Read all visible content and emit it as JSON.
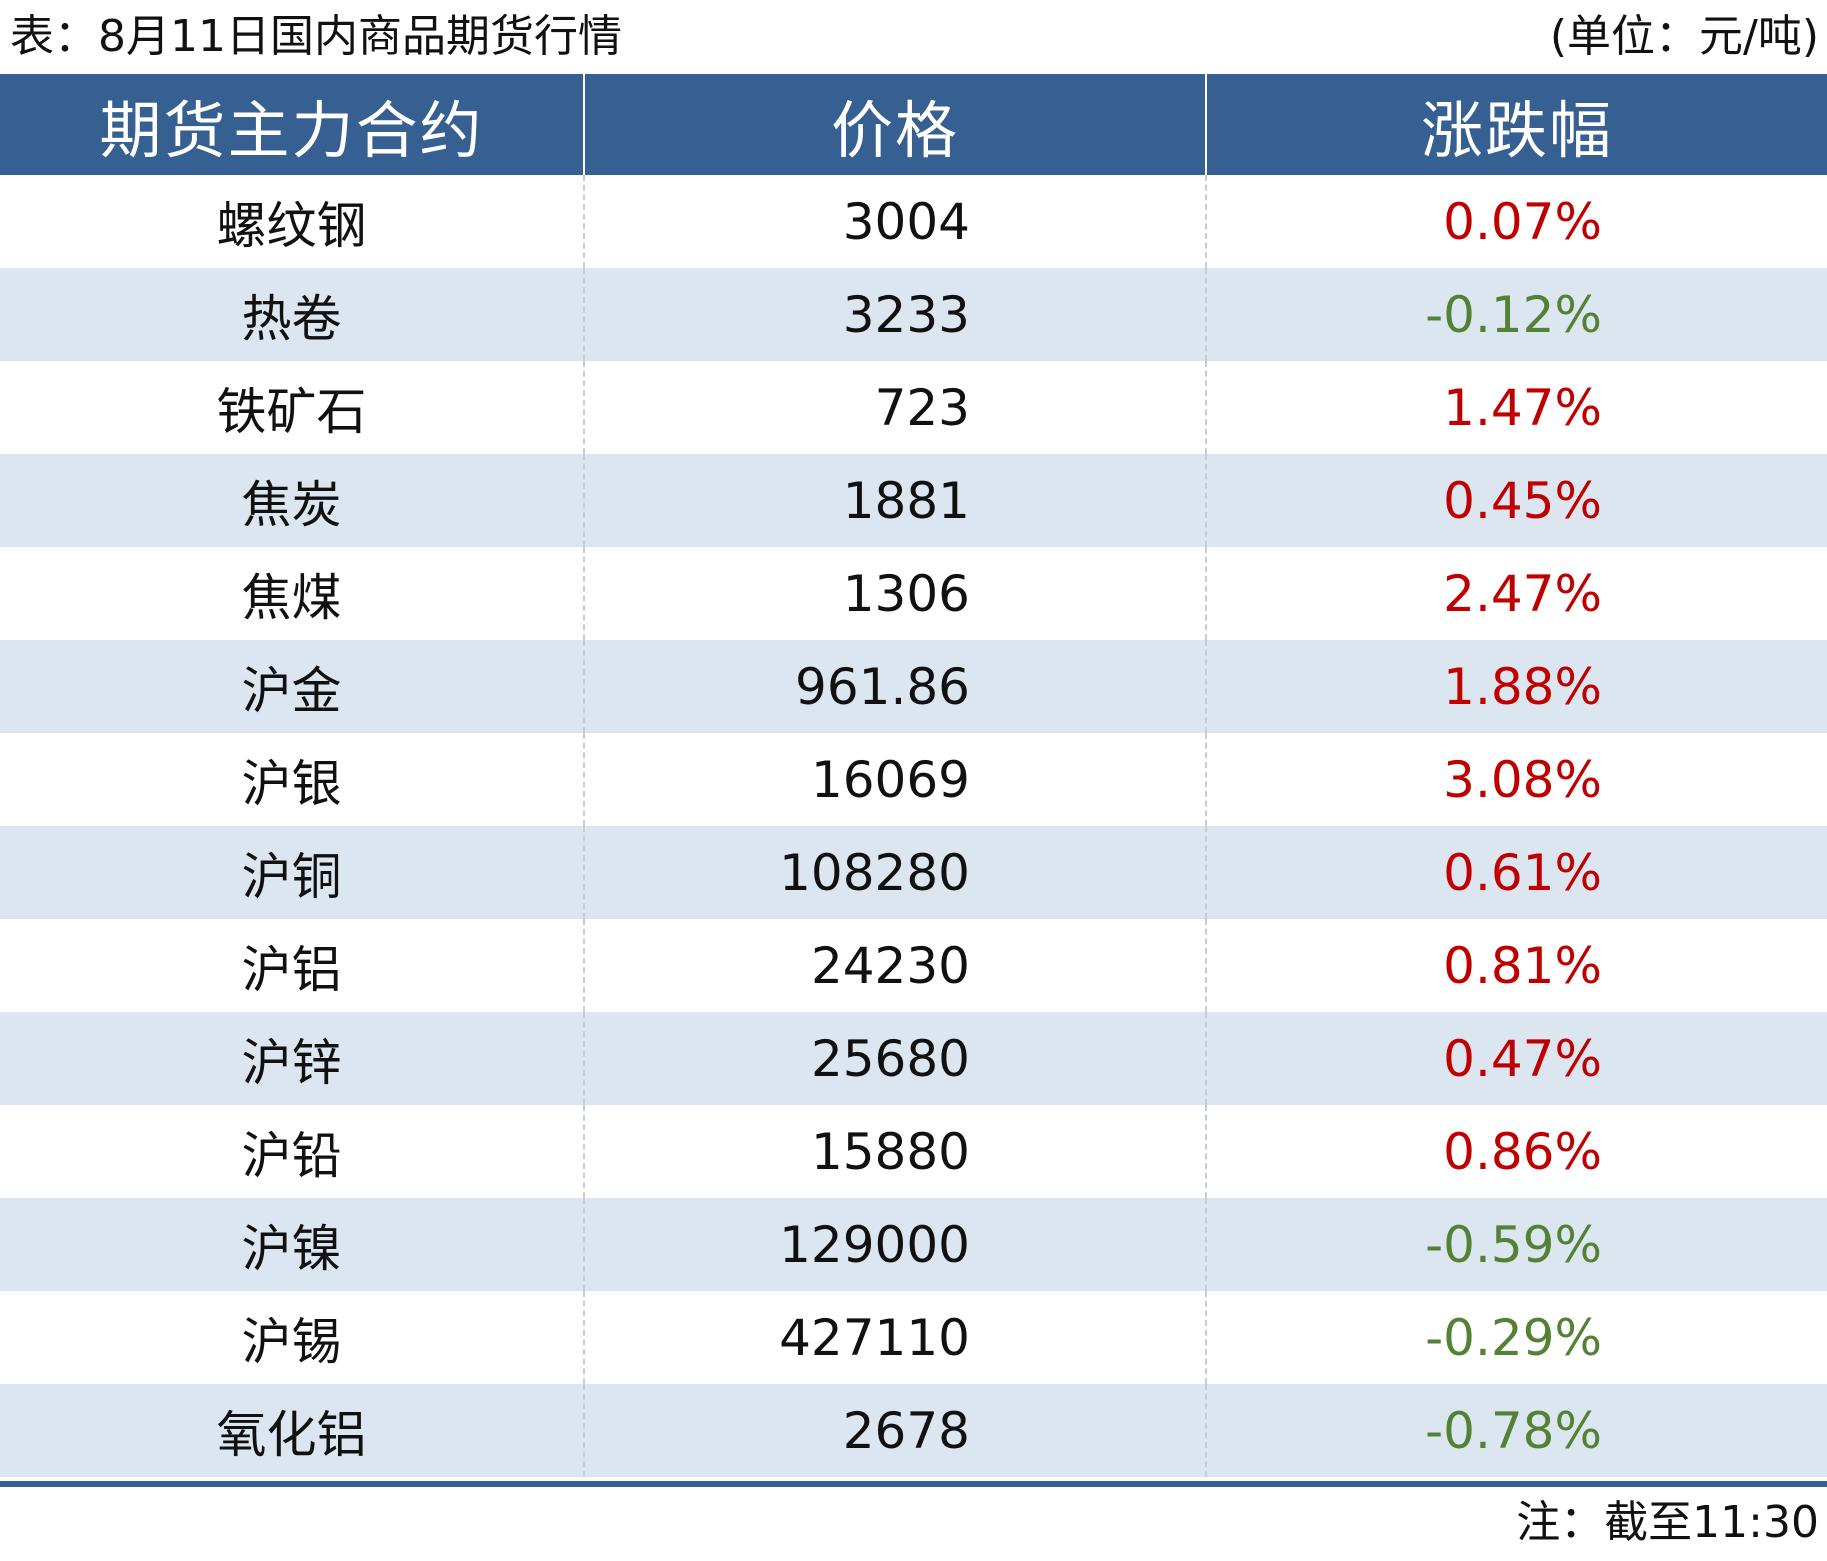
{
  "caption": "表：8月11日国内商品期货行情",
  "unit": "(单位：元/吨)",
  "note": "注：截至11:30",
  "colors": {
    "header_bg": "#376092",
    "alt_row_bg": "#dce6f1",
    "up": "#c00000",
    "down": "#548235"
  },
  "chart_data": {
    "type": "table",
    "columns": [
      "期货主力合约",
      "价格",
      "涨跌幅"
    ],
    "rows": [
      {
        "name": "螺纹钢",
        "price": "3004",
        "change": "0.07%"
      },
      {
        "name": "热卷",
        "price": "3233",
        "change": "-0.12%"
      },
      {
        "name": "铁矿石",
        "price": "723",
        "change": "1.47%"
      },
      {
        "name": "焦炭",
        "price": "1881",
        "change": "0.45%"
      },
      {
        "name": "焦煤",
        "price": "1306",
        "change": "2.47%"
      },
      {
        "name": "沪金",
        "price": "961.86",
        "change": "1.88%"
      },
      {
        "name": "沪银",
        "price": "16069",
        "change": "3.08%"
      },
      {
        "name": "沪铜",
        "price": "108280",
        "change": "0.61%"
      },
      {
        "name": "沪铝",
        "price": "24230",
        "change": "0.81%"
      },
      {
        "name": "沪锌",
        "price": "25680",
        "change": "0.47%"
      },
      {
        "name": "沪铅",
        "price": "15880",
        "change": "0.86%"
      },
      {
        "name": "沪镍",
        "price": "129000",
        "change": "-0.59%"
      },
      {
        "name": "沪锡",
        "price": "427110",
        "change": "-0.29%"
      },
      {
        "name": "氧化铝",
        "price": "2678",
        "change": "-0.78%"
      }
    ]
  }
}
